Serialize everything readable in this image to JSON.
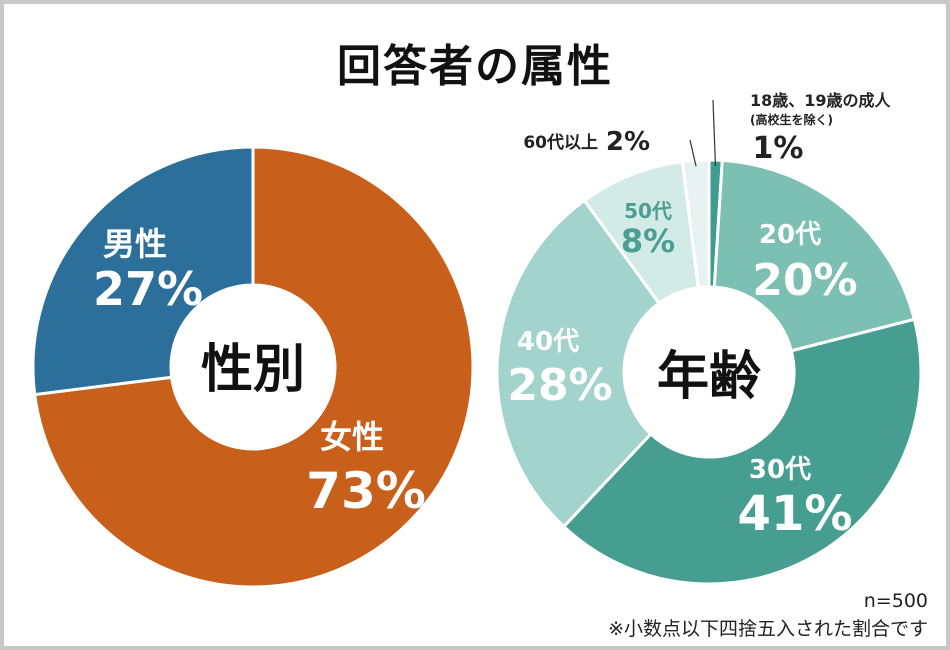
{
  "title": "回答者の属性",
  "chart_data": [
    {
      "type": "pie",
      "center_label": "性別",
      "slices": [
        {
          "label": "女性",
          "value": 73,
          "display": "73%",
          "color": "#c85f1a"
        },
        {
          "label": "男性",
          "value": 27,
          "display": "27%",
          "color": "#2c6f9a"
        }
      ]
    },
    {
      "type": "pie",
      "center_label": "年齢",
      "slices": [
        {
          "label": "18歳、19歳の成人",
          "sublabel": "(高校生を除く)",
          "value": 1,
          "display": "1%",
          "color": "#3f9c8f"
        },
        {
          "label": "20代",
          "value": 20,
          "display": "20%",
          "color": "#7cc0b4"
        },
        {
          "label": "30代",
          "value": 41,
          "display": "41%",
          "color": "#459e90"
        },
        {
          "label": "40代",
          "value": 28,
          "display": "28%",
          "color": "#a2d3cc"
        },
        {
          "label": "50代",
          "value": 8,
          "display": "8%",
          "color": "#d3ebe7"
        },
        {
          "label": "60代以上",
          "value": 2,
          "display": "2%",
          "color": "#e8f3f1"
        }
      ]
    }
  ],
  "footnote": {
    "sample": "n=500",
    "note": "※小数点以下四捨五入された割合です"
  }
}
